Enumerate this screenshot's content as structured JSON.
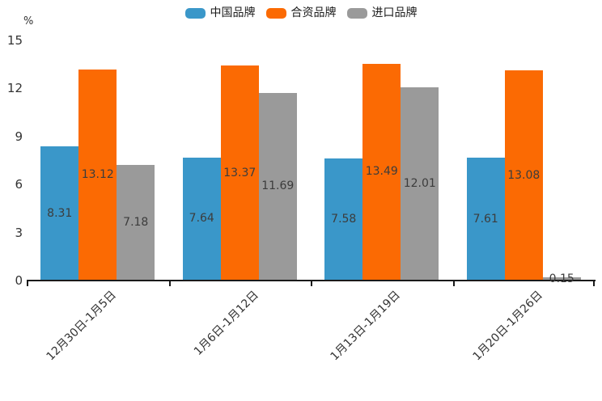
{
  "chart_data": {
    "type": "bar",
    "title": "",
    "unit": "%",
    "categories": [
      "12月30日-1月5日",
      "1月6日-1月12日",
      "1月13日-1月19日",
      "1月20日-1月26日"
    ],
    "series": [
      {
        "name": "中国品牌",
        "color": "#3a97c9",
        "values": [
          8.31,
          7.64,
          7.58,
          7.61
        ]
      },
      {
        "name": "合资品牌",
        "color": "#fb6a03",
        "values": [
          13.12,
          13.37,
          13.49,
          13.08
        ]
      },
      {
        "name": "进口品牌",
        "color": "#9a9a9a",
        "values": [
          7.18,
          11.69,
          12.01,
          0.15
        ]
      }
    ],
    "value_labels": [
      [
        "8.31",
        "7.64",
        "7.58",
        "7.61"
      ],
      [
        "13.12",
        "13.37",
        "13.49",
        "13.08"
      ],
      [
        "7.18",
        "11.69",
        "12.01",
        "0.15"
      ]
    ],
    "yticks": [
      "15",
      "12",
      "9",
      "6",
      "3",
      "0"
    ],
    "ytick_values": [
      15,
      12,
      9,
      6,
      3,
      0
    ],
    "ylim": [
      0,
      15
    ],
    "legend_position": "top",
    "grid": false,
    "colors": {
      "axis": "#1a1a1a",
      "tick_label": "#333333",
      "value_label": "#3c3c3c",
      "background": "#ffffff"
    }
  }
}
